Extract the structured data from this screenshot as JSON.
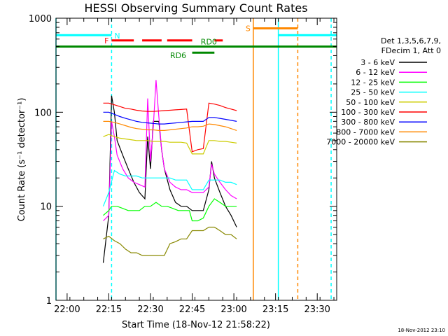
{
  "chart_data": {
    "type": "line",
    "title": "HESSI Observing Summary Count Rates",
    "xlabel": "Start Time (18-Nov-12 21:58:22)",
    "ylabel": "Count Rate (s⁻¹ detector⁻¹)",
    "yscale": "log",
    "xlim": [
      "21:56",
      "23:37"
    ],
    "ylim": [
      1,
      1000
    ],
    "grid": false,
    "legend_position": "right",
    "x_ticks": [
      "22:00",
      "22:15",
      "22:30",
      "22:45",
      "23:00",
      "23:15",
      "23:30"
    ],
    "y_ticks": [
      "1",
      "10",
      "100",
      "1000"
    ],
    "timestamp": "18-Nov-2012 23:10",
    "legend_header": [
      "Det 1,3,5,6,7,9,",
      "FDecim 1, Att 0"
    ],
    "series": [
      {
        "name": "3 - 6 keV",
        "color": "#000000",
        "points": [
          [
            "22:13",
            2.5
          ],
          [
            "22:15",
            8
          ],
          [
            "22:16",
            150
          ],
          [
            "22:17",
            100
          ],
          [
            "22:18",
            50
          ],
          [
            "22:20",
            35
          ],
          [
            "22:22",
            25
          ],
          [
            "22:24",
            18
          ],
          [
            "22:26",
            14
          ],
          [
            "22:28",
            12
          ],
          [
            "22:29",
            55
          ],
          [
            "22:30",
            25
          ],
          [
            "22:31",
            80
          ],
          [
            "22:33",
            80
          ],
          [
            "22:34",
            40
          ],
          [
            "22:35",
            25
          ],
          [
            "22:37",
            15
          ],
          [
            "22:39",
            11
          ],
          [
            "22:41",
            10
          ],
          [
            "22:43",
            10
          ],
          [
            "22:45",
            9
          ],
          [
            "22:47",
            9
          ],
          [
            "22:49",
            9
          ],
          [
            "22:51",
            15
          ],
          [
            "22:52",
            30
          ],
          [
            "22:53",
            20
          ],
          [
            "22:55",
            14
          ],
          [
            "22:57",
            10
          ],
          [
            "22:59",
            8
          ],
          [
            "23:01",
            6
          ]
        ]
      },
      {
        "name": "6 - 12 keV",
        "color": "#ff00ff",
        "points": [
          [
            "22:13",
            7
          ],
          [
            "22:15",
            8
          ],
          [
            "22:16",
            80
          ],
          [
            "22:17",
            55
          ],
          [
            "22:18",
            35
          ],
          [
            "22:20",
            25
          ],
          [
            "22:22",
            20
          ],
          [
            "22:24",
            18
          ],
          [
            "22:26",
            17
          ],
          [
            "22:28",
            16
          ],
          [
            "22:29",
            140
          ],
          [
            "22:30",
            30
          ],
          [
            "22:31",
            70
          ],
          [
            "22:32",
            220
          ],
          [
            "22:33",
            90
          ],
          [
            "22:34",
            40
          ],
          [
            "22:35",
            25
          ],
          [
            "22:37",
            18
          ],
          [
            "22:39",
            16
          ],
          [
            "22:41",
            15
          ],
          [
            "22:43",
            15
          ],
          [
            "22:45",
            14
          ],
          [
            "22:47",
            14
          ],
          [
            "22:49",
            14
          ],
          [
            "22:51",
            16
          ],
          [
            "22:52",
            28
          ],
          [
            "22:53",
            22
          ],
          [
            "22:55",
            18
          ],
          [
            "22:57",
            15
          ],
          [
            "22:59",
            13
          ],
          [
            "23:01",
            12
          ]
        ]
      },
      {
        "name": "12 - 25 keV",
        "color": "#00ff00",
        "points": [
          [
            "22:13",
            8
          ],
          [
            "22:15",
            9
          ],
          [
            "22:16",
            10
          ],
          [
            "22:18",
            10
          ],
          [
            "22:20",
            9.5
          ],
          [
            "22:22",
            9
          ],
          [
            "22:24",
            9
          ],
          [
            "22:26",
            9
          ],
          [
            "22:28",
            10
          ],
          [
            "22:30",
            10
          ],
          [
            "22:32",
            11
          ],
          [
            "22:34",
            10
          ],
          [
            "22:36",
            10
          ],
          [
            "22:38",
            9.5
          ],
          [
            "22:40",
            9
          ],
          [
            "22:42",
            9
          ],
          [
            "22:44",
            9
          ],
          [
            "22:45",
            7
          ],
          [
            "22:47",
            7
          ],
          [
            "22:49",
            7.5
          ],
          [
            "22:51",
            10
          ],
          [
            "22:53",
            12
          ],
          [
            "22:55",
            11
          ],
          [
            "22:57",
            10
          ],
          [
            "22:59",
            10
          ],
          [
            "23:01",
            10
          ]
        ]
      },
      {
        "name": "25 - 50 keV",
        "color": "#00ffff",
        "points": [
          [
            "22:13",
            10
          ],
          [
            "22:15",
            14
          ],
          [
            "22:17",
            24
          ],
          [
            "22:19",
            22
          ],
          [
            "22:21",
            21
          ],
          [
            "22:23",
            21
          ],
          [
            "22:25",
            21
          ],
          [
            "22:27",
            20
          ],
          [
            "22:29",
            20
          ],
          [
            "22:31",
            20
          ],
          [
            "22:33",
            20
          ],
          [
            "22:35",
            20
          ],
          [
            "22:37",
            20
          ],
          [
            "22:39",
            19
          ],
          [
            "22:41",
            19
          ],
          [
            "22:43",
            19
          ],
          [
            "22:45",
            15
          ],
          [
            "22:47",
            15
          ],
          [
            "22:49",
            15
          ],
          [
            "22:51",
            19
          ],
          [
            "22:53",
            19
          ],
          [
            "22:55",
            19
          ],
          [
            "22:57",
            18
          ],
          [
            "22:59",
            18
          ],
          [
            "23:01",
            17
          ]
        ]
      },
      {
        "name": "50 - 100 keV",
        "color": "#cccc00",
        "points": [
          [
            "22:13",
            55
          ],
          [
            "22:15",
            58
          ],
          [
            "22:17",
            55
          ],
          [
            "22:19",
            53
          ],
          [
            "22:21",
            52
          ],
          [
            "22:23",
            51
          ],
          [
            "22:25",
            50
          ],
          [
            "22:27",
            50
          ],
          [
            "22:29",
            50
          ],
          [
            "22:31",
            49
          ],
          [
            "22:33",
            49
          ],
          [
            "22:35",
            49
          ],
          [
            "22:37",
            48
          ],
          [
            "22:39",
            48
          ],
          [
            "22:41",
            48
          ],
          [
            "22:43",
            47
          ],
          [
            "22:45",
            36
          ],
          [
            "22:47",
            36
          ],
          [
            "22:49",
            36
          ],
          [
            "22:51",
            50
          ],
          [
            "22:53",
            50
          ],
          [
            "22:55",
            49
          ],
          [
            "22:57",
            49
          ],
          [
            "22:59",
            48
          ],
          [
            "23:01",
            47
          ]
        ]
      },
      {
        "name": "100 - 300 keV",
        "color": "#ff0000",
        "points": [
          [
            "22:13",
            125
          ],
          [
            "22:15",
            125
          ],
          [
            "22:17",
            120
          ],
          [
            "22:19",
            115
          ],
          [
            "22:21",
            110
          ],
          [
            "22:23",
            108
          ],
          [
            "22:25",
            105
          ],
          [
            "22:27",
            103
          ],
          [
            "22:29",
            102
          ],
          [
            "22:31",
            102
          ],
          [
            "22:33",
            103
          ],
          [
            "22:35",
            104
          ],
          [
            "22:37",
            105
          ],
          [
            "22:39",
            106
          ],
          [
            "22:41",
            107
          ],
          [
            "22:43",
            108
          ],
          [
            "22:45",
            38
          ],
          [
            "22:47",
            40
          ],
          [
            "22:49",
            41
          ],
          [
            "22:51",
            125
          ],
          [
            "22:53",
            122
          ],
          [
            "22:55",
            118
          ],
          [
            "22:57",
            112
          ],
          [
            "22:59",
            108
          ],
          [
            "23:01",
            104
          ]
        ]
      },
      {
        "name": "300 - 800 keV",
        "color": "#0000ff",
        "points": [
          [
            "22:13",
            100
          ],
          [
            "22:15",
            100
          ],
          [
            "22:17",
            95
          ],
          [
            "22:19",
            90
          ],
          [
            "22:21",
            86
          ],
          [
            "22:23",
            83
          ],
          [
            "22:25",
            80
          ],
          [
            "22:27",
            78
          ],
          [
            "22:29",
            77
          ],
          [
            "22:31",
            76
          ],
          [
            "22:33",
            75
          ],
          [
            "22:35",
            75
          ],
          [
            "22:37",
            76
          ],
          [
            "22:39",
            77
          ],
          [
            "22:41",
            78
          ],
          [
            "22:43",
            79
          ],
          [
            "22:45",
            80
          ],
          [
            "22:47",
            80
          ],
          [
            "22:49",
            80
          ],
          [
            "22:51",
            88
          ],
          [
            "22:53",
            88
          ],
          [
            "22:55",
            86
          ],
          [
            "22:57",
            84
          ],
          [
            "22:59",
            82
          ],
          [
            "23:01",
            80
          ]
        ]
      },
      {
        "name": "800 - 7000 keV",
        "color": "#ff8800",
        "points": [
          [
            "22:13",
            80
          ],
          [
            "22:15",
            80
          ],
          [
            "22:17",
            78
          ],
          [
            "22:19",
            75
          ],
          [
            "22:21",
            72
          ],
          [
            "22:23",
            69
          ],
          [
            "22:25",
            67
          ],
          [
            "22:27",
            66
          ],
          [
            "22:29",
            65
          ],
          [
            "22:31",
            65
          ],
          [
            "22:33",
            64
          ],
          [
            "22:35",
            64
          ],
          [
            "22:37",
            65
          ],
          [
            "22:39",
            66
          ],
          [
            "22:41",
            67
          ],
          [
            "22:43",
            68
          ],
          [
            "22:45",
            70
          ],
          [
            "22:47",
            70
          ],
          [
            "22:49",
            71
          ],
          [
            "22:51",
            75
          ],
          [
            "22:53",
            74
          ],
          [
            "22:55",
            72
          ],
          [
            "22:57",
            70
          ],
          [
            "22:59",
            67
          ],
          [
            "23:01",
            64
          ]
        ]
      },
      {
        "name": "7000 - 20000 keV",
        "color": "#888800",
        "points": [
          [
            "22:13",
            4.5
          ],
          [
            "22:15",
            4.8
          ],
          [
            "22:17",
            4.3
          ],
          [
            "22:19",
            4.0
          ],
          [
            "22:21",
            3.5
          ],
          [
            "22:23",
            3.2
          ],
          [
            "22:25",
            3.2
          ],
          [
            "22:27",
            3.0
          ],
          [
            "22:29",
            3.0
          ],
          [
            "22:31",
            3.0
          ],
          [
            "22:33",
            3.0
          ],
          [
            "22:35",
            3.0
          ],
          [
            "22:37",
            4.0
          ],
          [
            "22:39",
            4.2
          ],
          [
            "22:41",
            4.5
          ],
          [
            "22:43",
            4.5
          ],
          [
            "22:45",
            5.5
          ],
          [
            "22:47",
            5.5
          ],
          [
            "22:49",
            5.5
          ],
          [
            "22:51",
            6
          ],
          [
            "22:53",
            6
          ],
          [
            "22:55",
            5.5
          ],
          [
            "22:57",
            5
          ],
          [
            "22:59",
            5
          ],
          [
            "23:01",
            4.5
          ]
        ]
      }
    ],
    "flag_bars": [
      {
        "label": "N",
        "color": "#00ffff",
        "segments": [
          [
            "21:56",
            "22:16"
          ],
          [
            "23:16",
            "23:37"
          ]
        ],
        "y": 660
      },
      {
        "label": "F",
        "color": "#ff0000",
        "segments": [
          [
            "22:16",
            "22:24"
          ],
          [
            "22:27",
            "22:34"
          ],
          [
            "22:36",
            "22:45"
          ],
          [
            "22:53",
            "22:56"
          ]
        ],
        "y": 580
      },
      {
        "label": "S",
        "color": "#ff8800",
        "segments": [
          [
            "23:07",
            "23:23"
          ]
        ],
        "y": 780
      },
      {
        "label": "RD0",
        "color": "#008800",
        "segments": [
          [
            "21:56",
            "23:37"
          ]
        ],
        "y": 500
      },
      {
        "label": "RD6",
        "color": "#008800",
        "segments": [
          [
            "22:45",
            "22:53"
          ]
        ],
        "y": 430
      }
    ],
    "vertical_markers": [
      {
        "time": "21:56",
        "color": "#00ffff",
        "style": "solid"
      },
      {
        "time": "22:16",
        "color": "#00ffff",
        "style": "dashed"
      },
      {
        "time": "23:07",
        "color": "#ff8800",
        "style": "solid"
      },
      {
        "time": "23:16",
        "color": "#00ffff",
        "style": "solid"
      },
      {
        "time": "23:23",
        "color": "#ff8800",
        "style": "dashed"
      },
      {
        "time": "23:35",
        "color": "#00ffff",
        "style": "dashed"
      }
    ]
  }
}
